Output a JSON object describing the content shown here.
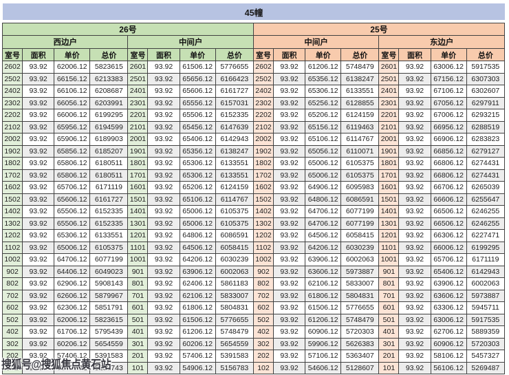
{
  "title_bar": {
    "text": "45幢",
    "background": "#b7c3e2"
  },
  "watermark": {
    "text": "搜狐号@搜狐焦点黄石站"
  },
  "colors": {
    "title_bar_bg": "#b7c3e2",
    "green_header": "#c6e0b4",
    "orange_header": "#f8cbad",
    "green_room_cell": "#e2efda",
    "orange_room_cell": "#fce4d6",
    "row_stripe": "#ededed",
    "border": "#404040"
  },
  "table": {
    "building_groups": [
      {
        "label": "26号",
        "theme": "green",
        "unit_types": [
          "西边户",
          "中间户"
        ]
      },
      {
        "label": "25号",
        "theme": "orange",
        "unit_types": [
          "中间户",
          "东边户"
        ]
      }
    ],
    "column_headers": [
      "室号",
      "面积",
      "单价",
      "总价"
    ],
    "rows": [
      [
        "2602",
        "93.92",
        "62006.12",
        "5823615",
        "2601",
        "93.92",
        "61506.12",
        "5776655",
        "2602",
        "93.92",
        "61206.12",
        "5748479",
        "2601",
        "93.92",
        "63006.12",
        "5917535"
      ],
      [
        "2502",
        "93.92",
        "66156.12",
        "6213383",
        "2501",
        "93.92",
        "65656.12",
        "6166423",
        "2502",
        "93.92",
        "65356.12",
        "6138247",
        "2501",
        "93.92",
        "67156.12",
        "6307303"
      ],
      [
        "2402",
        "93.92",
        "66106.12",
        "6208687",
        "2401",
        "93.92",
        "65606.12",
        "6161727",
        "2402",
        "93.92",
        "65306.12",
        "6133551",
        "2401",
        "93.92",
        "67106.12",
        "6302607"
      ],
      [
        "2302",
        "93.92",
        "66056.12",
        "6203991",
        "2301",
        "93.92",
        "65556.12",
        "6157031",
        "2302",
        "93.92",
        "65256.12",
        "6128855",
        "2301",
        "93.92",
        "67056.12",
        "6297911"
      ],
      [
        "2202",
        "93.92",
        "66006.12",
        "6199295",
        "2201",
        "93.92",
        "65506.12",
        "6152335",
        "2202",
        "93.92",
        "65206.12",
        "6124159",
        "2201",
        "93.92",
        "67006.12",
        "6293215"
      ],
      [
        "2102",
        "93.92",
        "65956.12",
        "6194599",
        "2101",
        "93.92",
        "65456.12",
        "6147639",
        "2102",
        "93.92",
        "65156.12",
        "6119463",
        "2101",
        "93.92",
        "66956.12",
        "6288519"
      ],
      [
        "2002",
        "93.92",
        "65906.12",
        "6189903",
        "2001",
        "93.92",
        "65406.12",
        "6142943",
        "2002",
        "93.92",
        "65106.12",
        "6114767",
        "2001",
        "93.92",
        "66906.12",
        "6283823"
      ],
      [
        "1902",
        "93.92",
        "65856.12",
        "6185207",
        "1901",
        "93.92",
        "65356.12",
        "6138247",
        "1902",
        "93.92",
        "65056.12",
        "6110071",
        "1901",
        "93.92",
        "66856.12",
        "6279127"
      ],
      [
        "1802",
        "93.92",
        "65806.12",
        "6180511",
        "1801",
        "93.92",
        "65306.12",
        "6133551",
        "1802",
        "93.92",
        "65006.12",
        "6105375",
        "1801",
        "93.92",
        "66806.12",
        "6274431"
      ],
      [
        "1702",
        "93.92",
        "65806.12",
        "6180511",
        "1701",
        "93.92",
        "65306.12",
        "6133551",
        "1702",
        "93.92",
        "65006.12",
        "6105375",
        "1701",
        "93.92",
        "66806.12",
        "6274431"
      ],
      [
        "1602",
        "93.92",
        "65706.12",
        "6171119",
        "1601",
        "93.92",
        "65206.12",
        "6124159",
        "1602",
        "93.92",
        "64906.12",
        "6095983",
        "1601",
        "93.92",
        "66706.12",
        "6265039"
      ],
      [
        "1502",
        "93.92",
        "65606.12",
        "6161727",
        "1501",
        "93.92",
        "65106.12",
        "6114767",
        "1502",
        "93.92",
        "64806.12",
        "6086591",
        "1501",
        "93.92",
        "66606.12",
        "6255647"
      ],
      [
        "1402",
        "93.92",
        "65506.12",
        "6152335",
        "1401",
        "93.92",
        "65006.12",
        "6105375",
        "1402",
        "93.92",
        "64706.12",
        "6077199",
        "1401",
        "93.92",
        "66506.12",
        "6246255"
      ],
      [
        "1302",
        "93.92",
        "65506.12",
        "6152335",
        "1301",
        "93.92",
        "65006.12",
        "6105375",
        "1302",
        "93.92",
        "64706.12",
        "6077199",
        "1301",
        "93.92",
        "66506.12",
        "6246255"
      ],
      [
        "1202",
        "93.92",
        "65306.12",
        "6133551",
        "1201",
        "93.92",
        "64806.12",
        "6086591",
        "1202",
        "93.92",
        "64506.12",
        "6058415",
        "1201",
        "93.92",
        "66306.12",
        "6227471"
      ],
      [
        "1102",
        "93.92",
        "65006.12",
        "6105375",
        "1101",
        "93.92",
        "64506.12",
        "6058415",
        "1102",
        "93.92",
        "64206.12",
        "6030239",
        "1101",
        "93.92",
        "66006.12",
        "6199295"
      ],
      [
        "1002",
        "93.92",
        "64706.12",
        "6077199",
        "1001",
        "93.92",
        "64206.12",
        "6030239",
        "1002",
        "93.92",
        "63906.12",
        "6002063",
        "1001",
        "93.92",
        "65706.12",
        "6171119"
      ],
      [
        "902",
        "93.92",
        "64406.12",
        "6049023",
        "901",
        "93.92",
        "63906.12",
        "6002063",
        "902",
        "93.92",
        "63606.12",
        "5973887",
        "901",
        "93.92",
        "65406.12",
        "6142943"
      ],
      [
        "802",
        "93.92",
        "62906.12",
        "5908143",
        "801",
        "93.92",
        "62406.12",
        "5861183",
        "802",
        "93.92",
        "62106.12",
        "5833007",
        "801",
        "93.92",
        "63906.12",
        "6002063"
      ],
      [
        "702",
        "93.92",
        "62606.12",
        "5879967",
        "701",
        "93.92",
        "62106.12",
        "5833007",
        "702",
        "93.92",
        "61806.12",
        "5804831",
        "701",
        "93.92",
        "63606.12",
        "5973887"
      ],
      [
        "602",
        "93.92",
        "62306.12",
        "5851791",
        "601",
        "93.92",
        "61806.12",
        "5804831",
        "602",
        "93.92",
        "61506.12",
        "5776655",
        "601",
        "93.92",
        "63306.12",
        "5945711"
      ],
      [
        "502",
        "93.92",
        "62006.12",
        "5823615",
        "501",
        "93.92",
        "61506.12",
        "5776655",
        "502",
        "93.92",
        "61206.12",
        "5748479",
        "501",
        "93.92",
        "63006.12",
        "5917535"
      ],
      [
        "402",
        "93.92",
        "61706.12",
        "5795439",
        "401",
        "93.92",
        "61206.12",
        "5748479",
        "402",
        "93.92",
        "60906.12",
        "5720303",
        "401",
        "93.92",
        "62706.12",
        "5889359"
      ],
      [
        "302",
        "93.92",
        "60206.12",
        "5654559",
        "301",
        "93.92",
        "60206.12",
        "5654559",
        "302",
        "93.92",
        "59906.12",
        "5626383",
        "301",
        "93.92",
        "60906.12",
        "5720303"
      ],
      [
        "202",
        "93.92",
        "57406.12",
        "5391583",
        "201",
        "93.92",
        "57406.12",
        "5391583",
        "202",
        "93.92",
        "57106.12",
        "5363407",
        "201",
        "93.92",
        "58106.12",
        "5457327"
      ],
      [
        "102",
        "93.92",
        "55406.12",
        "5203743",
        "101",
        "93.92",
        "54906.12",
        "5156783",
        "102",
        "93.92",
        "54606.12",
        "5128607",
        "101",
        "93.92",
        "56106.12",
        "5269487"
      ]
    ]
  }
}
